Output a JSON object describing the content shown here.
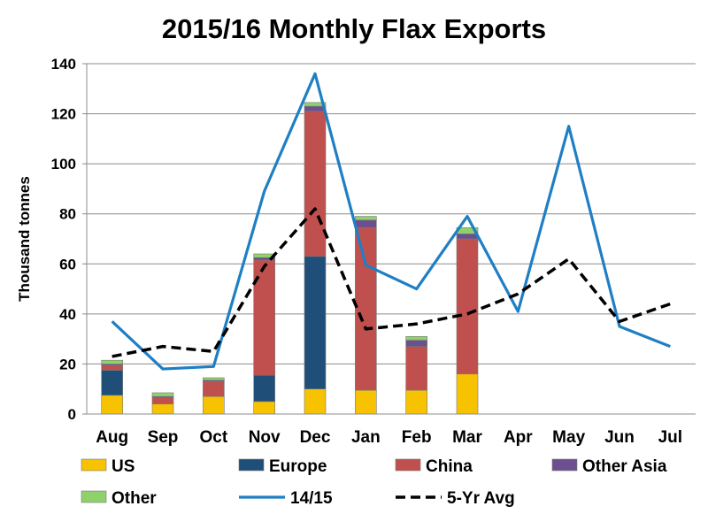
{
  "chart_data": {
    "type": "bar",
    "title": "2015/16 Monthly Flax Exports",
    "xlabel": "",
    "ylabel": "Thousand tonnes",
    "ylim": [
      0,
      140
    ],
    "yticks": [
      0,
      20,
      40,
      60,
      80,
      100,
      120,
      140
    ],
    "grid": true,
    "legend_position": "bottom",
    "categories": [
      "Aug",
      "Sep",
      "Oct",
      "Nov",
      "Dec",
      "Jan",
      "Feb",
      "Mar",
      "Apr",
      "May",
      "Jun",
      "Jul"
    ],
    "series": [
      {
        "name": "US",
        "kind": "bar",
        "color": "#f7c200",
        "values": [
          7.5,
          4,
          7,
          5,
          10,
          9.5,
          9.5,
          16,
          null,
          null,
          null,
          null
        ]
      },
      {
        "name": "Europe",
        "kind": "bar",
        "color": "#1f4e79",
        "values": [
          10,
          0,
          0,
          10.5,
          53,
          0,
          0,
          0,
          null,
          null,
          null,
          null
        ]
      },
      {
        "name": "China",
        "kind": "bar",
        "color": "#c0504d",
        "values": [
          2,
          2.5,
          6,
          46,
          58,
          65,
          17.5,
          54,
          null,
          null,
          null,
          null
        ]
      },
      {
        "name": "Other Asia",
        "kind": "bar",
        "color": "#6b4f8f",
        "values": [
          0.5,
          0.5,
          0.5,
          1,
          2,
          3,
          2.5,
          2,
          null,
          null,
          null,
          null
        ]
      },
      {
        "name": "Other",
        "kind": "bar",
        "color": "#8fd16b",
        "values": [
          1.5,
          1.5,
          1,
          1.5,
          1.5,
          1.5,
          1.5,
          2.5,
          null,
          null,
          null,
          null
        ]
      },
      {
        "name": "14/15",
        "kind": "line",
        "color": "#1f7fc4",
        "dash": false,
        "values": [
          37,
          18,
          19,
          89,
          136,
          59.5,
          50,
          79,
          41,
          115,
          35,
          27
        ]
      },
      {
        "name": "5-Yr Avg",
        "kind": "line",
        "color": "#000000",
        "dash": true,
        "values": [
          23,
          27,
          25,
          59,
          82,
          34,
          36,
          40,
          48,
          62,
          37,
          44
        ]
      }
    ]
  }
}
